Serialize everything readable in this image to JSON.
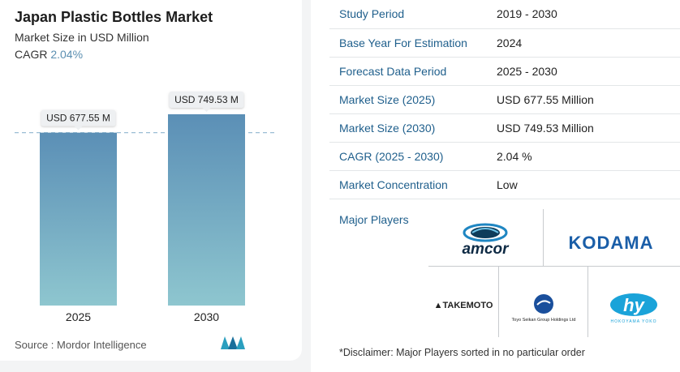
{
  "header": {
    "title": "Japan Plastic Bottles Market",
    "subtitle": "Market Size in USD Million",
    "cagr_label": "CAGR",
    "cagr_value": "2.04%"
  },
  "chart_data": {
    "type": "bar",
    "categories": [
      "2025",
      "2030"
    ],
    "values": [
      677.55,
      749.53
    ],
    "data_labels": [
      "USD 677.55 M",
      "USD 749.53 M"
    ],
    "ylim": [
      0,
      749.53
    ],
    "reference_line": 677.55,
    "bar_color_top": "#5b8fb6",
    "bar_color_bottom": "#8ec6cf"
  },
  "source": "Source :  Mordor Intelligence",
  "facts": [
    {
      "key": "Study Period",
      "value": "2019 - 2030"
    },
    {
      "key": "Base Year For Estimation",
      "value": "2024"
    },
    {
      "key": "Forecast Data Period",
      "value": "2025 - 2030"
    },
    {
      "key": "Market Size (2025)",
      "value": "USD 677.55 Million"
    },
    {
      "key": "Market Size (2030)",
      "value": "USD 749.53 Million"
    },
    {
      "key": "CAGR (2025 - 2030)",
      "value": "2.04 %"
    },
    {
      "key": "Market Concentration",
      "value": "Low"
    }
  ],
  "players": {
    "label": "Major Players",
    "amcor": "amcor",
    "kodama": "KODAMA",
    "takemoto": "TAKEMOTO",
    "toyo": "Toyo Seikan Group Holdings Ltd",
    "hy": "hy",
    "hy_caption": "HOKOYAMA YOKO"
  },
  "disclaimer": "*Disclaimer: Major Players sorted in no particular order",
  "colors": {
    "key_text": "#1f5f8c",
    "accent": "#5b8fb1"
  }
}
